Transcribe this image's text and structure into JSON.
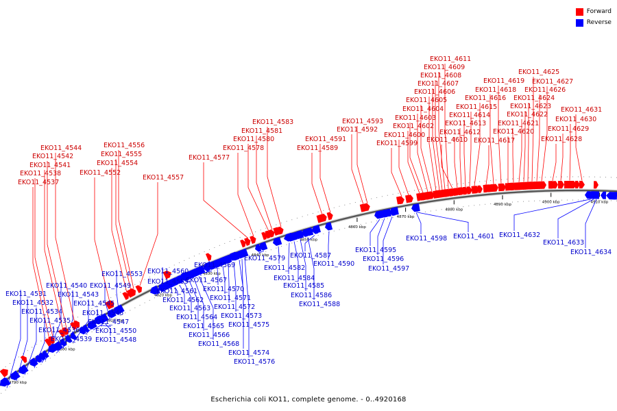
{
  "legend": {
    "forward_label": "Forward",
    "reverse_label": "Reverse",
    "forward_color": "#ff0000",
    "reverse_color": "#0000ff"
  },
  "caption": "Escherichia coli KO11, complete genome. - 0..4920168",
  "axis_ticks": [
    "4790 kbp",
    "4800 kbp",
    "4810 kbp",
    "4820 kbp",
    "4830 kbp",
    "4840 kbp",
    "4850 kbp",
    "4860 kbp",
    "4870 kbp",
    "4880 kbp",
    "4890 kbp",
    "4900 kbp",
    "4910 kbp"
  ],
  "genes": [
    {
      "label": "EKO11_4531",
      "strand": "reverse"
    },
    {
      "label": "EKO11_4532",
      "strand": "reverse"
    },
    {
      "label": "EKO11_4534",
      "strand": "reverse"
    },
    {
      "label": "EKO11_4535",
      "strand": "reverse"
    },
    {
      "label": "EKO11_4536",
      "strand": "reverse"
    },
    {
      "label": "EKO11_4537",
      "strand": "forward"
    },
    {
      "label": "EKO11_4538",
      "strand": "forward"
    },
    {
      "label": "EKO11_4539",
      "strand": "reverse"
    },
    {
      "label": "EKO11_4540",
      "strand": "reverse"
    },
    {
      "label": "EKO11_4541",
      "strand": "forward"
    },
    {
      "label": "EKO11_4542",
      "strand": "forward"
    },
    {
      "label": "EKO11_4543",
      "strand": "reverse"
    },
    {
      "label": "EKO11_4544",
      "strand": "forward"
    },
    {
      "label": "EKO11_4545",
      "strand": "reverse"
    },
    {
      "label": "EKO11_4546",
      "strand": "reverse"
    },
    {
      "label": "EKO11_4547",
      "strand": "reverse"
    },
    {
      "label": "EKO11_4548",
      "strand": "reverse"
    },
    {
      "label": "EKO11_4549",
      "strand": "reverse"
    },
    {
      "label": "EKO11_4550",
      "strand": "reverse"
    },
    {
      "label": "EKO11_4552",
      "strand": "forward"
    },
    {
      "label": "EKO11_4553",
      "strand": "reverse"
    },
    {
      "label": "EKO11_4554",
      "strand": "forward"
    },
    {
      "label": "EKO11_4555",
      "strand": "forward"
    },
    {
      "label": "EKO11_4556",
      "strand": "forward"
    },
    {
      "label": "EKO11_4557",
      "strand": "forward"
    },
    {
      "label": "EKO11_4559",
      "strand": "reverse"
    },
    {
      "label": "EKO11_4560",
      "strand": "reverse"
    },
    {
      "label": "EKO11_4561",
      "strand": "reverse"
    },
    {
      "label": "EKO11_4562",
      "strand": "reverse"
    },
    {
      "label": "EKO11_4563",
      "strand": "reverse"
    },
    {
      "label": "EKO11_4564",
      "strand": "reverse"
    },
    {
      "label": "EKO11_4565",
      "strand": "reverse"
    },
    {
      "label": "EKO11_4566",
      "strand": "reverse"
    },
    {
      "label": "EKO11_4567",
      "strand": "reverse"
    },
    {
      "label": "EKO11_4568",
      "strand": "reverse"
    },
    {
      "label": "EKO11_4569",
      "strand": "reverse"
    },
    {
      "label": "EKO11_4570",
      "strand": "reverse"
    },
    {
      "label": "EKO11_4571",
      "strand": "reverse"
    },
    {
      "label": "EKO11_4572",
      "strand": "reverse"
    },
    {
      "label": "EKO11_4573",
      "strand": "reverse"
    },
    {
      "label": "EKO11_4574",
      "strand": "reverse"
    },
    {
      "label": "EKO11_4575",
      "strand": "reverse"
    },
    {
      "label": "EKO11_4576",
      "strand": "reverse"
    },
    {
      "label": "EKO11_4577",
      "strand": "forward"
    },
    {
      "label": "EKO11_4578",
      "strand": "forward"
    },
    {
      "label": "EKO11_4579",
      "strand": "reverse"
    },
    {
      "label": "EKO11_4580",
      "strand": "forward"
    },
    {
      "label": "EKO11_4581",
      "strand": "forward"
    },
    {
      "label": "EKO11_4582",
      "strand": "reverse"
    },
    {
      "label": "EKO11_4583",
      "strand": "forward"
    },
    {
      "label": "EKO11_4584",
      "strand": "reverse"
    },
    {
      "label": "EKO11_4585",
      "strand": "reverse"
    },
    {
      "label": "EKO11_4586",
      "strand": "reverse"
    },
    {
      "label": "EKO11_4587",
      "strand": "reverse"
    },
    {
      "label": "EKO11_4588",
      "strand": "reverse"
    },
    {
      "label": "EKO11_4589",
      "strand": "forward"
    },
    {
      "label": "EKO11_4590",
      "strand": "reverse"
    },
    {
      "label": "EKO11_4591",
      "strand": "forward"
    },
    {
      "label": "EKO11_4592",
      "strand": "forward"
    },
    {
      "label": "EKO11_4593",
      "strand": "forward"
    },
    {
      "label": "EKO11_4595",
      "strand": "reverse"
    },
    {
      "label": "EKO11_4596",
      "strand": "reverse"
    },
    {
      "label": "EKO11_4597",
      "strand": "reverse"
    },
    {
      "label": "EKO11_4598",
      "strand": "reverse"
    },
    {
      "label": "EKO11_4599",
      "strand": "forward"
    },
    {
      "label": "EKO11_4600",
      "strand": "forward"
    },
    {
      "label": "EKO11_4601",
      "strand": "reverse"
    },
    {
      "label": "EKO11_4602",
      "strand": "forward"
    },
    {
      "label": "EKO11_4603",
      "strand": "forward"
    },
    {
      "label": "EKO11_4604",
      "strand": "forward"
    },
    {
      "label": "EKO11_4605",
      "strand": "forward"
    },
    {
      "label": "EKO11_4606",
      "strand": "forward"
    },
    {
      "label": "EKO11_4607",
      "strand": "forward"
    },
    {
      "label": "EKO11_4608",
      "strand": "forward"
    },
    {
      "label": "EKO11_4609",
      "strand": "forward"
    },
    {
      "label": "EKO11_4610",
      "strand": "forward"
    },
    {
      "label": "EKO11_4611",
      "strand": "forward"
    },
    {
      "label": "EKO11_4612",
      "strand": "forward"
    },
    {
      "label": "EKO11_4613",
      "strand": "forward"
    },
    {
      "label": "EKO11_4614",
      "strand": "forward"
    },
    {
      "label": "EKO11_4615",
      "strand": "forward"
    },
    {
      "label": "EKO11_4616",
      "strand": "forward"
    },
    {
      "label": "EKO11_4617",
      "strand": "forward"
    },
    {
      "label": "EKO11_4618",
      "strand": "forward"
    },
    {
      "label": "EKO11_4619",
      "strand": "forward"
    },
    {
      "label": "EKO11_4620",
      "strand": "forward"
    },
    {
      "label": "EKO11_4621",
      "strand": "forward"
    },
    {
      "label": "EKO11_4622",
      "strand": "forward"
    },
    {
      "label": "EKO11_4623",
      "strand": "forward"
    },
    {
      "label": "EKO11_4624",
      "strand": "forward"
    },
    {
      "label": "EKO11_4625",
      "strand": "forward"
    },
    {
      "label": "EKO11_4626",
      "strand": "forward"
    },
    {
      "label": "EKO11_4627",
      "strand": "forward"
    },
    {
      "label": "EKO11_4628",
      "strand": "forward"
    },
    {
      "label": "EKO11_4629",
      "strand": "forward"
    },
    {
      "label": "EKO11_4630",
      "strand": "forward"
    },
    {
      "label": "EKO11_4631",
      "strand": "forward"
    },
    {
      "label": "EKO11_4632",
      "strand": "reverse"
    },
    {
      "label": "EKO11_4633",
      "strand": "reverse"
    },
    {
      "label": "EKO11_4634",
      "strand": "reverse"
    }
  ]
}
